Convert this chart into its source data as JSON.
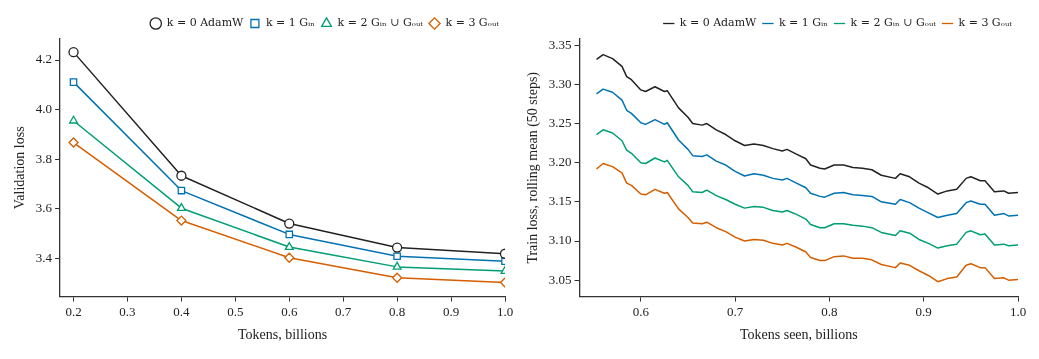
{
  "chart_data": [
    {
      "type": "line",
      "xlabel": "Tokens, billions",
      "ylabel": "Validation loss",
      "x": [
        0.2,
        0.4,
        0.6,
        0.8,
        1.0
      ],
      "xlim": [
        0.175,
        1.0
      ],
      "xticks": [
        0.2,
        0.3,
        0.4,
        0.5,
        0.6,
        0.7,
        0.8,
        0.9,
        {
          "value": 1.0,
          "label": "1.0"
        }
      ],
      "ylim": [
        3.245,
        4.285
      ],
      "yticks": [
        {
          "value": 3.4,
          "label": "3.4"
        },
        {
          "value": 3.6,
          "label": "3.6"
        },
        {
          "value": 3.8,
          "label": "3.8"
        },
        {
          "value": 4.0,
          "label": "4.0"
        },
        {
          "value": 4.2,
          "label": "4.2"
        }
      ],
      "grid": false,
      "legend": "top right",
      "line_style": "solid",
      "series": [
        {
          "name": "k = 0 AdamW",
          "color": "#222222",
          "marker": "circle",
          "values": [
            4.232,
            3.733,
            3.54,
            3.443,
            3.418
          ]
        },
        {
          "name": "k = 1 Gᵢₙ",
          "color": "#0072b2",
          "marker": "square",
          "values": [
            4.111,
            3.673,
            3.496,
            3.408,
            3.388
          ]
        },
        {
          "name": "k = 2 Gᵢₙ ∪ Gₒᵤₜ",
          "color": "#009e73",
          "marker": "triangle",
          "values": [
            3.955,
            3.602,
            3.445,
            3.365,
            3.348
          ]
        },
        {
          "name": "k = 3 Gₒᵤₜ",
          "color": "#d55e00",
          "marker": "diamond",
          "values": [
            3.867,
            3.552,
            3.402,
            3.321,
            3.302
          ]
        }
      ]
    },
    {
      "type": "line",
      "xlabel": "Tokens seen, billions",
      "ylabel": "Train loss, rolling mean (50 steps)",
      "xlim": [
        0.535,
        1.0
      ],
      "xticks": [
        0.6,
        0.7,
        0.8,
        0.9,
        {
          "value": 1.0,
          "label": "1.0"
        }
      ],
      "ylim": [
        3.029,
        3.358
      ],
      "yticks": [
        3.05,
        {
          "value": 3.1,
          "label": "3.10"
        },
        3.15,
        {
          "value": 3.2,
          "label": "3.20"
        },
        3.25,
        {
          "value": 3.3,
          "label": "3.30"
        },
        3.35
      ],
      "grid": false,
      "legend": "top right",
      "line_style": "solid",
      "marker": "none",
      "x": [
        0.553,
        0.56,
        0.57,
        0.58,
        0.585,
        0.59,
        0.6,
        0.605,
        0.615,
        0.625,
        0.628,
        0.64,
        0.65,
        0.655,
        0.665,
        0.67,
        0.68,
        0.69,
        0.7,
        0.71,
        0.72,
        0.73,
        0.74,
        0.75,
        0.755,
        0.765,
        0.775,
        0.78,
        0.79,
        0.795,
        0.805,
        0.815,
        0.825,
        0.835,
        0.845,
        0.855,
        0.87,
        0.875,
        0.885,
        0.895,
        0.905,
        0.915,
        0.925,
        0.935,
        0.945,
        0.95,
        0.96,
        0.965,
        0.975,
        0.985,
        0.99,
        1.0
      ],
      "series": [
        {
          "name": "k = 0 AdamW",
          "color": "#222222",
          "values": [
            3.332,
            3.338,
            3.333,
            3.323,
            3.31,
            3.306,
            3.293,
            3.291,
            3.297,
            3.291,
            3.292,
            3.27,
            3.258,
            3.25,
            3.248,
            3.25,
            3.242,
            3.236,
            3.228,
            3.222,
            3.224,
            3.222,
            3.218,
            3.215,
            3.217,
            3.211,
            3.205,
            3.197,
            3.193,
            3.192,
            3.197,
            3.197,
            3.194,
            3.193,
            3.191,
            3.184,
            3.18,
            3.186,
            3.182,
            3.174,
            3.168,
            3.16,
            3.164,
            3.166,
            3.18,
            3.182,
            3.177,
            3.177,
            3.163,
            3.164,
            3.161,
            3.162
          ]
        },
        {
          "name": "k = 1 Gᵢₙ",
          "color": "#0072b2",
          "values": [
            3.288,
            3.294,
            3.29,
            3.28,
            3.267,
            3.263,
            3.251,
            3.249,
            3.255,
            3.249,
            3.251,
            3.229,
            3.217,
            3.209,
            3.208,
            3.21,
            3.202,
            3.197,
            3.189,
            3.183,
            3.186,
            3.184,
            3.18,
            3.178,
            3.18,
            3.174,
            3.168,
            3.161,
            3.157,
            3.156,
            3.161,
            3.162,
            3.159,
            3.158,
            3.157,
            3.15,
            3.147,
            3.153,
            3.149,
            3.142,
            3.136,
            3.13,
            3.133,
            3.135,
            3.149,
            3.151,
            3.147,
            3.147,
            3.133,
            3.135,
            3.132,
            3.133
          ]
        },
        {
          "name": "k = 2 Gᵢₙ ∪ Gₒᵤₜ",
          "color": "#009e73",
          "values": [
            3.236,
            3.242,
            3.238,
            3.228,
            3.216,
            3.212,
            3.2,
            3.199,
            3.206,
            3.201,
            3.203,
            3.182,
            3.171,
            3.163,
            3.162,
            3.165,
            3.158,
            3.153,
            3.147,
            3.142,
            3.144,
            3.143,
            3.139,
            3.137,
            3.139,
            3.134,
            3.128,
            3.121,
            3.117,
            3.117,
            3.122,
            3.122,
            3.12,
            3.119,
            3.117,
            3.111,
            3.107,
            3.113,
            3.11,
            3.102,
            3.097,
            3.091,
            3.094,
            3.096,
            3.111,
            3.113,
            3.108,
            3.109,
            3.095,
            3.096,
            3.094,
            3.095
          ]
        },
        {
          "name": "k = 3 Gₒᵤₜ",
          "color": "#d55e00",
          "values": [
            3.192,
            3.199,
            3.195,
            3.187,
            3.174,
            3.171,
            3.16,
            3.159,
            3.166,
            3.161,
            3.162,
            3.141,
            3.13,
            3.123,
            3.122,
            3.124,
            3.117,
            3.112,
            3.105,
            3.1,
            3.102,
            3.101,
            3.097,
            3.095,
            3.097,
            3.092,
            3.086,
            3.079,
            3.075,
            3.075,
            3.08,
            3.081,
            3.078,
            3.078,
            3.076,
            3.07,
            3.066,
            3.072,
            3.069,
            3.062,
            3.056,
            3.048,
            3.052,
            3.054,
            3.069,
            3.071,
            3.066,
            3.066,
            3.052,
            3.053,
            3.05,
            3.051
          ]
        }
      ]
    }
  ]
}
